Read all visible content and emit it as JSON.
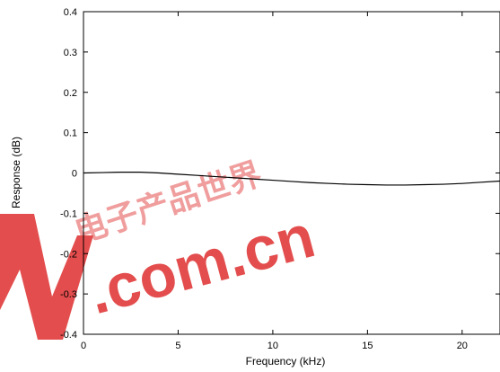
{
  "chart_data": {
    "type": "line",
    "title": "",
    "xlabel": "Frequency (kHz)",
    "ylabel": "Response (dB)",
    "xlim": [
      0,
      22
    ],
    "ylim": [
      -0.4,
      0.4
    ],
    "x_ticks": [
      0,
      5,
      10,
      15,
      20
    ],
    "y_ticks": [
      -0.4,
      -0.3,
      -0.2,
      -0.1,
      0,
      0.1,
      0.2,
      0.3,
      0.4
    ],
    "grid": false,
    "legend": "none",
    "series": [
      {
        "color": "#000000",
        "x": [
          0,
          1,
          2,
          3,
          4,
          5,
          6,
          7,
          8,
          9,
          10,
          11,
          12,
          13,
          14,
          15,
          16,
          17,
          18,
          19,
          20,
          21,
          22
        ],
        "y": [
          0.0,
          0.001,
          0.002,
          0.002,
          0.0,
          -0.003,
          -0.006,
          -0.009,
          -0.012,
          -0.015,
          -0.018,
          -0.021,
          -0.024,
          -0.026,
          -0.028,
          -0.029,
          -0.03,
          -0.03,
          -0.029,
          -0.028,
          -0.026,
          -0.023,
          -0.02
        ]
      }
    ]
  },
  "watermark": {
    "main_text": ".com.cn",
    "glyph_text": "电子产品世界",
    "color": "#e03a3a"
  }
}
